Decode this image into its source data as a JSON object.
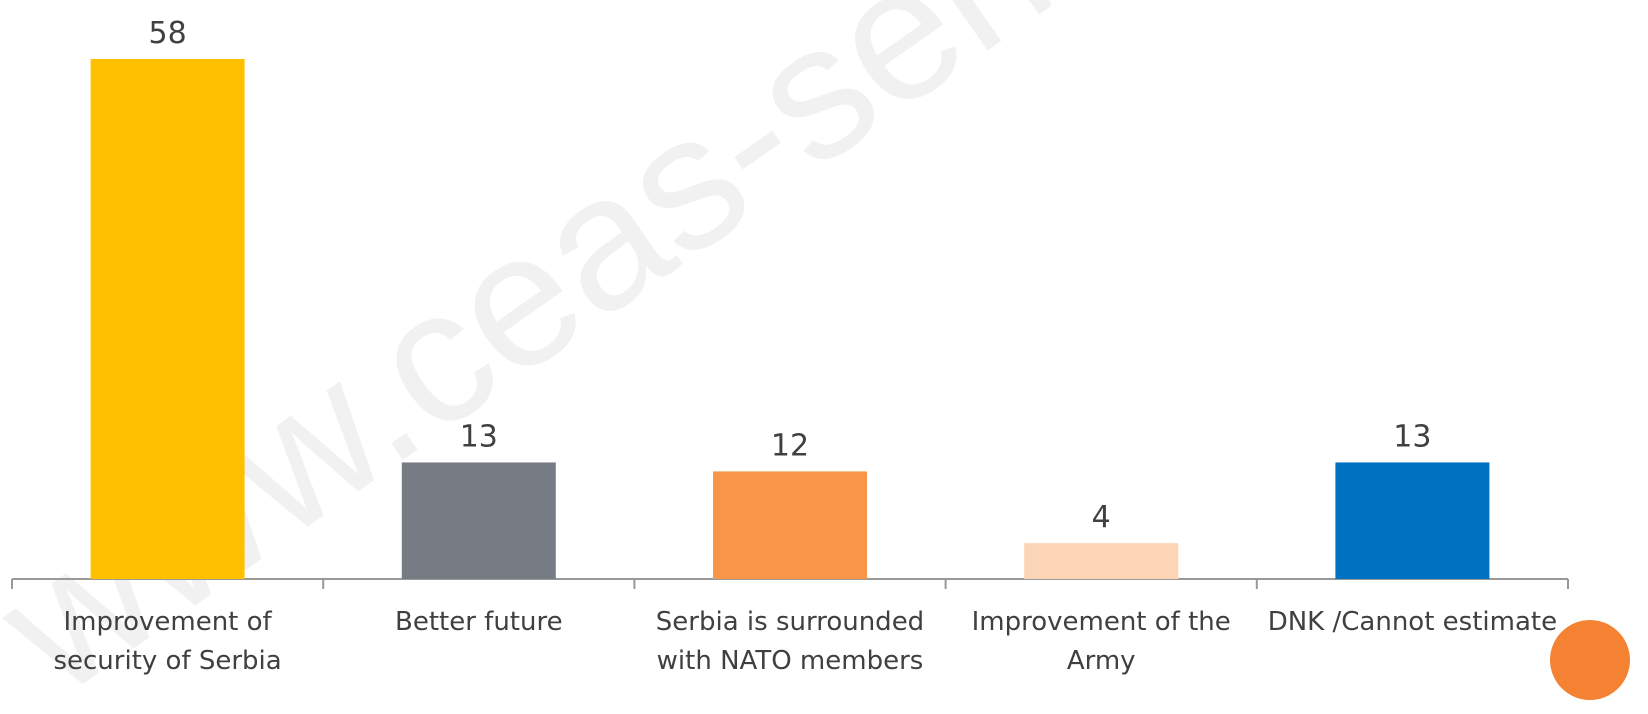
{
  "chart_data": {
    "type": "bar",
    "categories": [
      "Improvement of security of Serbia",
      "Better future",
      "Serbia is surrounded with NATO members",
      "Improvement of the Army",
      "DNK /Cannot estimate"
    ],
    "values": [
      58,
      13,
      12,
      4,
      13
    ],
    "colors": [
      "#FFC000",
      "#767B84",
      "#F79646",
      "#FBD5B5",
      "#0070C0"
    ],
    "watermark": "www.ceas-serbia.org"
  }
}
